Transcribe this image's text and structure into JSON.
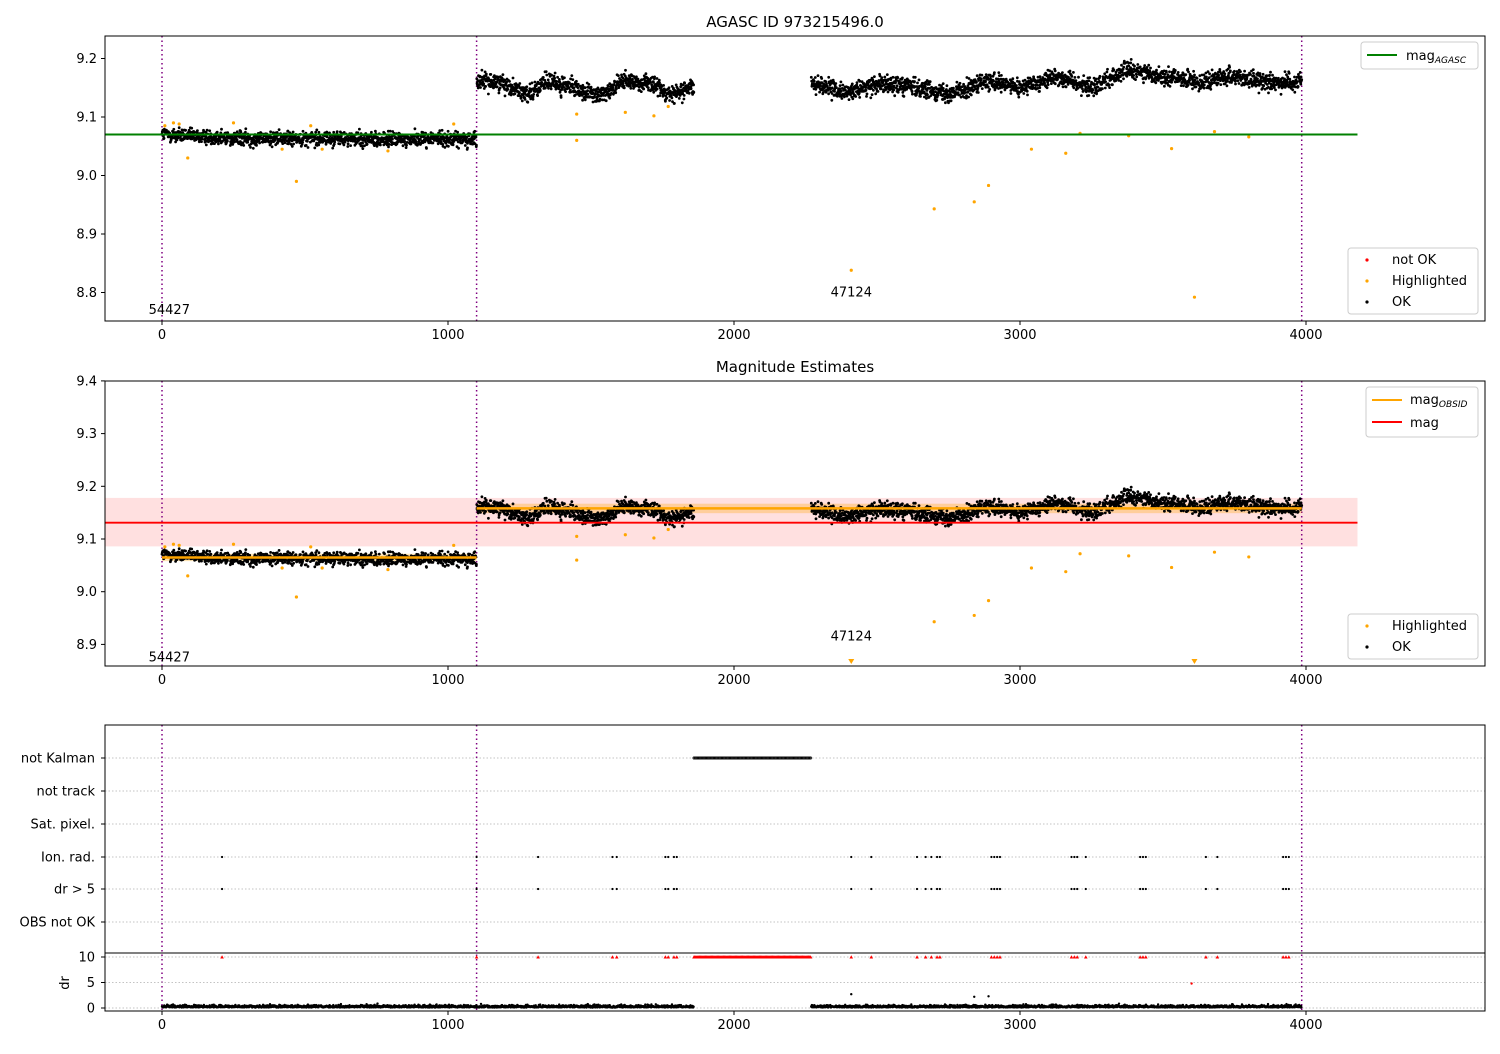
{
  "chart_data": [
    {
      "type": "scatter",
      "title": "AGASC ID 973215496.0",
      "xlabel": "",
      "ylabel": "",
      "xlim": [
        -200,
        4600
      ],
      "ylim": [
        8.75,
        9.24
      ],
      "xticks": [
        0,
        1000,
        2000,
        3000,
        4000
      ],
      "yticks": [
        8.8,
        8.9,
        9.0,
        9.1,
        9.2
      ],
      "xtick_labels": [
        "0",
        "1000",
        "2000",
        "3000",
        "4000"
      ],
      "ytick_labels": [
        "8.8",
        "8.9",
        "9.0",
        "9.1",
        "9.2"
      ],
      "grid": false,
      "vlines": [
        0,
        1100,
        3985
      ],
      "hline": {
        "name": "mag",
        "subscript": "AGASC",
        "y": 9.07,
        "x": [
          0,
          4180
        ],
        "color": "#008000"
      },
      "segment_labels": [
        {
          "text": "54427",
          "x": 550,
          "y": 8.77
        },
        {
          "text": "47124",
          "x": 2550,
          "y": 8.8
        }
      ],
      "legend_line": {
        "placement": "top-right",
        "entries": [
          {
            "label": "mag",
            "subscript": "AGASC",
            "color": "#008000"
          }
        ]
      },
      "legend_points": {
        "placement": "lower-right",
        "entries": [
          {
            "label": "not OK",
            "color": "#ff0000"
          },
          {
            "label": "Highlighted",
            "color": "#ffa500"
          },
          {
            "label": "OK",
            "color": "#000000"
          }
        ]
      },
      "ok_segments": [
        {
          "x": [
            0,
            1100
          ],
          "means": [
            9.07,
            9.066,
            9.063,
            9.064,
            9.063,
            9.061,
            9.063,
            9.062
          ],
          "spread": 0.012
        },
        {
          "x": [
            1100,
            1860
          ],
          "means": [
            9.16,
            9.16,
            9.14,
            9.16,
            9.15,
            9.135,
            9.16,
            9.16,
            9.14,
            9.15
          ],
          "spread": 0.014
        },
        {
          "x": [
            2270,
            3985
          ],
          "means": [
            9.16,
            9.14,
            9.16,
            9.15,
            9.14,
            9.16,
            9.15,
            9.17,
            9.15,
            9.18,
            9.17,
            9.16,
            9.17,
            9.16,
            9.16
          ],
          "spread": 0.014
        }
      ],
      "highlighted": [
        {
          "x": 10,
          "y": 9.085
        },
        {
          "x": 40,
          "y": 9.09
        },
        {
          "x": 60,
          "y": 9.088
        },
        {
          "x": 90,
          "y": 9.03
        },
        {
          "x": 250,
          "y": 9.09
        },
        {
          "x": 420,
          "y": 9.045
        },
        {
          "x": 470,
          "y": 8.99
        },
        {
          "x": 520,
          "y": 9.085
        },
        {
          "x": 560,
          "y": 9.045
        },
        {
          "x": 790,
          "y": 9.042
        },
        {
          "x": 1020,
          "y": 9.088
        },
        {
          "x": 1450,
          "y": 9.06
        },
        {
          "x": 1450,
          "y": 9.105
        },
        {
          "x": 1620,
          "y": 9.108
        },
        {
          "x": 1720,
          "y": 9.102
        },
        {
          "x": 1770,
          "y": 9.118
        },
        {
          "x": 2410,
          "y": 8.838
        },
        {
          "x": 2700,
          "y": 8.943
        },
        {
          "x": 2840,
          "y": 8.955
        },
        {
          "x": 2890,
          "y": 8.983
        },
        {
          "x": 3040,
          "y": 9.045
        },
        {
          "x": 3160,
          "y": 9.038
        },
        {
          "x": 3210,
          "y": 9.072
        },
        {
          "x": 3380,
          "y": 9.068
        },
        {
          "x": 3530,
          "y": 9.046
        },
        {
          "x": 3610,
          "y": 8.792
        },
        {
          "x": 3680,
          "y": 9.075
        },
        {
          "x": 3800,
          "y": 9.066
        }
      ]
    },
    {
      "type": "scatter",
      "title": "Magnitude Estimates",
      "xlabel": "",
      "ylabel": "",
      "xlim": [
        -200,
        4600
      ],
      "ylim": [
        8.86,
        9.4
      ],
      "xticks": [
        0,
        1000,
        2000,
        3000,
        4000
      ],
      "yticks": [
        8.9,
        9.0,
        9.1,
        9.2,
        9.3,
        9.4
      ],
      "xtick_labels": [
        "0",
        "1000",
        "2000",
        "3000",
        "4000"
      ],
      "ytick_labels": [
        "8.9",
        "9.0",
        "9.1",
        "9.2",
        "9.3",
        "9.4"
      ],
      "grid": false,
      "vlines": [
        0,
        1100,
        3985
      ],
      "mag_line": {
        "name": "mag",
        "y": 9.131,
        "x": [
          0,
          4180
        ],
        "band": [
          9.086,
          9.178
        ],
        "color": "#ff0000",
        "band_color": "#ffdddd"
      },
      "obsid_segments": [
        {
          "x": [
            0,
            1100
          ],
          "y": 9.065,
          "band": [
            9.058,
            9.072
          ]
        },
        {
          "x": [
            1100,
            3985
          ],
          "y": 9.158,
          "band": [
            9.149,
            9.167
          ]
        }
      ],
      "segment_labels": [
        {
          "text": "54427",
          "x": 550,
          "y": 8.875
        },
        {
          "text": "47124",
          "x": 2550,
          "y": 8.915
        }
      ],
      "legend_line": {
        "placement": "top-right",
        "entries": [
          {
            "label": "mag",
            "subscript": "OBSID",
            "color": "#ffa500"
          },
          {
            "label": "mag",
            "subscript": "",
            "color": "#ff0000"
          }
        ]
      },
      "legend_points": {
        "placement": "lower-right",
        "entries": [
          {
            "label": "Highlighted",
            "color": "#ffa500"
          },
          {
            "label": "OK",
            "color": "#000000"
          }
        ]
      },
      "offscale_markers": [
        {
          "x": 2410
        },
        {
          "x": 3610
        }
      ]
    },
    {
      "type": "scatter",
      "title": "",
      "xlabel": "",
      "ylabel": "",
      "xlim": [
        -200,
        4600
      ],
      "xticks": [
        0,
        1000,
        2000,
        3000,
        4000
      ],
      "xtick_labels": [
        "0",
        "1000",
        "2000",
        "3000",
        "4000"
      ],
      "grid": true,
      "vlines": [
        0,
        1100,
        3985
      ],
      "flag_rows": [
        "not Kalman",
        "not track",
        "Sat. pixel.",
        "Ion. rad.",
        "dr > 5",
        "OBS not OK"
      ],
      "flags": {
        "not Kalman": [
          {
            "from": 1860,
            "to": 2270
          }
        ],
        "Ion. rad.": [
          210,
          1100,
          1315,
          1575,
          1590,
          1760,
          1770,
          1790,
          1800,
          2410,
          2480,
          2640,
          2670,
          2690,
          2710,
          2720,
          2900,
          2910,
          2920,
          2930,
          3180,
          3190,
          3200,
          3230,
          3420,
          3430,
          3440,
          3650,
          3690,
          3920,
          3930,
          3940
        ],
        "dr > 5": [
          210,
          1100,
          1315,
          1575,
          1590,
          1760,
          1770,
          1790,
          1800,
          2410,
          2480,
          2640,
          2670,
          2690,
          2710,
          2720,
          2900,
          2910,
          2920,
          2930,
          3180,
          3190,
          3200,
          3230,
          3420,
          3430,
          3440,
          3650,
          3690,
          3920,
          3930,
          3940
        ]
      },
      "dr_panel": {
        "ylabel": "dr",
        "ylim": [
          -0.5,
          10.5
        ],
        "yticks": [
          0,
          5,
          10
        ],
        "ytick_labels": [
          "0",
          "5",
          "10"
        ],
        "clipped_y": 10,
        "extra_points": [
          {
            "x": 2410,
            "y": 2.7
          },
          {
            "x": 2840,
            "y": 2.2
          },
          {
            "x": 2890,
            "y": 2.3
          },
          {
            "x": 3600,
            "y": 4.8
          }
        ],
        "gaps": [
          [
            1860,
            2270
          ]
        ]
      }
    }
  ]
}
